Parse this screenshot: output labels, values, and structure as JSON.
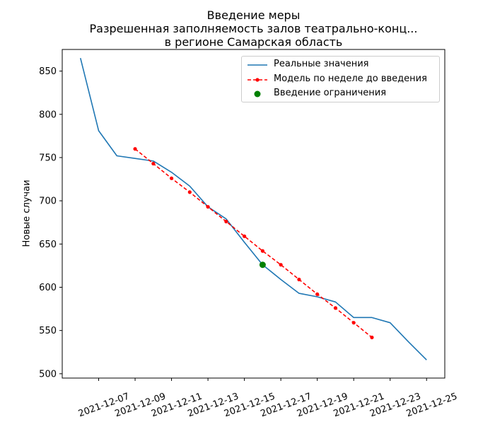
{
  "chart_data": {
    "type": "line",
    "title": [
      "Введение меры",
      "Разрешенная заполняемость залов театрально-конц...",
      "в регионе Самарская область"
    ],
    "xlabel": "",
    "ylabel": "Новые случаи",
    "ylim": [
      495,
      875
    ],
    "xlim": [
      "2021-12-05",
      "2021-12-26"
    ],
    "x_ticks": [
      "2021-12-07",
      "2021-12-09",
      "2021-12-11",
      "2021-12-13",
      "2021-12-15",
      "2021-12-17",
      "2021-12-19",
      "2021-12-21",
      "2021-12-23",
      "2021-12-25"
    ],
    "y_ticks": [
      500,
      550,
      600,
      650,
      700,
      750,
      800,
      850
    ],
    "grid": false,
    "legend_position": "top-right",
    "series": [
      {
        "name": "Реальные значения",
        "style": "solid",
        "color": "#1f77b4",
        "x": [
          "2021-12-06",
          "2021-12-07",
          "2021-12-08",
          "2021-12-09",
          "2021-12-10",
          "2021-12-11",
          "2021-12-12",
          "2021-12-13",
          "2021-12-14",
          "2021-12-15",
          "2021-12-16",
          "2021-12-17",
          "2021-12-18",
          "2021-12-19",
          "2021-12-20",
          "2021-12-21",
          "2021-12-22",
          "2021-12-23",
          "2021-12-24",
          "2021-12-25"
        ],
        "y": [
          865,
          781,
          752,
          749,
          746,
          733,
          717,
          693,
          679,
          652,
          626,
          609,
          593,
          589,
          583,
          565,
          565,
          559,
          537,
          516
        ]
      },
      {
        "name": "Модель по неделе до введения",
        "style": "dashed-dot",
        "color": "#ff0000",
        "x": [
          "2021-12-09",
          "2021-12-10",
          "2021-12-11",
          "2021-12-12",
          "2021-12-13",
          "2021-12-14",
          "2021-12-15",
          "2021-12-16",
          "2021-12-17",
          "2021-12-18",
          "2021-12-19",
          "2021-12-20",
          "2021-12-21",
          "2021-12-22"
        ],
        "y": [
          760,
          743,
          726,
          710,
          693,
          676,
          659,
          642,
          626,
          609,
          592,
          576,
          559,
          542
        ]
      },
      {
        "name": "Введение ограничения",
        "style": "marker",
        "color": "#008000",
        "x": [
          "2021-12-16"
        ],
        "y": [
          626
        ]
      }
    ]
  }
}
